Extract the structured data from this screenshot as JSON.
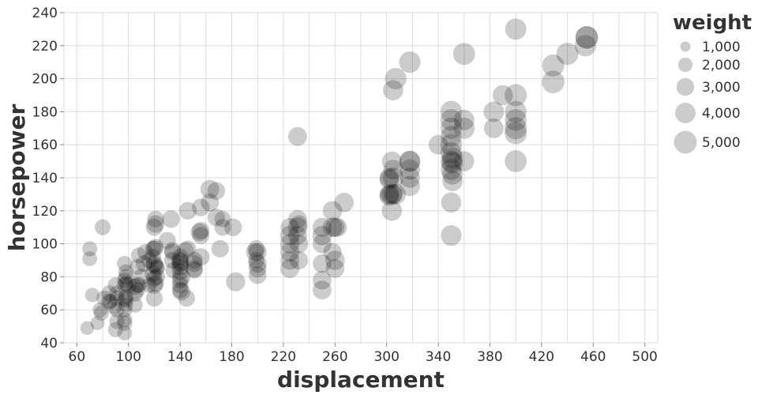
{
  "chart_data": {
    "type": "scatter",
    "title": "",
    "xlabel": "displacement",
    "ylabel": "horsepower",
    "xlim": [
      50,
      510
    ],
    "ylim": [
      40,
      240
    ],
    "x_ticks": [
      60,
      100,
      140,
      180,
      220,
      260,
      300,
      340,
      380,
      420,
      460,
      500
    ],
    "y_ticks": [
      40,
      60,
      80,
      100,
      120,
      140,
      160,
      180,
      200,
      220,
      240
    ],
    "grid": true,
    "size_field": "weight",
    "point_color": "#000000",
    "point_opacity": 0.2,
    "legend": {
      "title": "weight",
      "placement": "right",
      "items": [
        {
          "label": "1,000",
          "value": 1000
        },
        {
          "label": "2,000",
          "value": 2000
        },
        {
          "label": "3,000",
          "value": 3000
        },
        {
          "label": "4,000",
          "value": 4000
        },
        {
          "label": "5,000",
          "value": 5000
        }
      ]
    },
    "points": [
      [
        68,
        49,
        1800
      ],
      [
        70,
        91,
        2100
      ],
      [
        70,
        97,
        2200
      ],
      [
        72,
        69,
        2000
      ],
      [
        76,
        52,
        1900
      ],
      [
        78,
        60,
        2100
      ],
      [
        79,
        58,
        2200
      ],
      [
        80,
        110,
        2400
      ],
      [
        81,
        67,
        2200
      ],
      [
        85,
        65,
        2400
      ],
      [
        85,
        70,
        2400
      ],
      [
        86,
        65,
        2100
      ],
      [
        89,
        62,
        2300
      ],
      [
        90,
        48,
        2200
      ],
      [
        90,
        75,
        2300
      ],
      [
        91,
        53,
        2200
      ],
      [
        91,
        60,
        2200
      ],
      [
        91,
        67,
        2300
      ],
      [
        91,
        70,
        2300
      ],
      [
        97,
        46,
        2100
      ],
      [
        97,
        52,
        2300
      ],
      [
        97,
        54,
        2200
      ],
      [
        97,
        60,
        2200
      ],
      [
        97,
        67,
        2400
      ],
      [
        97,
        75,
        2300
      ],
      [
        97,
        78,
        2200
      ],
      [
        97,
        88,
        2300
      ],
      [
        98,
        63,
        2000
      ],
      [
        98,
        66,
        2300
      ],
      [
        98,
        68,
        2200
      ],
      [
        98,
        76,
        2200
      ],
      [
        98,
        80,
        2300
      ],
      [
        98,
        83,
        2200
      ],
      [
        100,
        75,
        2600
      ],
      [
        105,
        63,
        2300
      ],
      [
        105,
        70,
        2600
      ],
      [
        105,
        74,
        2500
      ],
      [
        107,
        72,
        2300
      ],
      [
        107,
        75,
        2400
      ],
      [
        107,
        86,
        2400
      ],
      [
        108,
        75,
        2300
      ],
      [
        108,
        93,
        2400
      ],
      [
        110,
        80,
        2600
      ],
      [
        112,
        88,
        2600
      ],
      [
        113,
        95,
        2400
      ],
      [
        116,
        75,
        2200
      ],
      [
        116,
        90,
        2400
      ],
      [
        119,
        82,
        2700
      ],
      [
        119,
        92,
        2500
      ],
      [
        119,
        97,
        2400
      ],
      [
        120,
        67,
        2700
      ],
      [
        120,
        75,
        2900
      ],
      [
        120,
        79,
        2600
      ],
      [
        120,
        87,
        2800
      ],
      [
        120,
        88,
        2900
      ],
      [
        120,
        97,
        2700
      ],
      [
        120,
        110,
        2800
      ],
      [
        121,
        76,
        2600
      ],
      [
        121,
        98,
        2600
      ],
      [
        121,
        112,
        2900
      ],
      [
        121,
        115,
        2700
      ],
      [
        122,
        80,
        2600
      ],
      [
        122,
        85,
        2400
      ],
      [
        122,
        86,
        2300
      ],
      [
        130,
        102,
        2800
      ],
      [
        133,
        115,
        3000
      ],
      [
        134,
        90,
        2700
      ],
      [
        134,
        95,
        2600
      ],
      [
        134,
        96,
        2700
      ],
      [
        135,
        84,
        2600
      ],
      [
        140,
        72,
        2600
      ],
      [
        140,
        75,
        2600
      ],
      [
        140,
        78,
        2600
      ],
      [
        140,
        83,
        2600
      ],
      [
        140,
        86,
        2800
      ],
      [
        140,
        88,
        2700
      ],
      [
        140,
        89,
        2900
      ],
      [
        140,
        90,
        2800
      ],
      [
        140,
        92,
        2700
      ],
      [
        141,
        71,
        3000
      ],
      [
        141,
        80,
        3100
      ],
      [
        144,
        96,
        2700
      ],
      [
        145,
        67,
        2700
      ],
      [
        146,
        97,
        2600
      ],
      [
        146,
        120,
        3000
      ],
      [
        151,
        84,
        2700
      ],
      [
        151,
        85,
        2800
      ],
      [
        151,
        88,
        2700
      ],
      [
        151,
        90,
        2700
      ],
      [
        155,
        107,
        3000
      ],
      [
        156,
        92,
        3000
      ],
      [
        156,
        105,
        2800
      ],
      [
        156,
        108,
        2900
      ],
      [
        156,
        122,
        3000
      ],
      [
        163,
        125,
        3100
      ],
      [
        163,
        133,
        3400
      ],
      [
        168,
        116,
        2900
      ],
      [
        168,
        132,
        3000
      ],
      [
        171,
        97,
        2900
      ],
      [
        173,
        110,
        2700
      ],
      [
        173,
        115,
        2600
      ],
      [
        181,
        110,
        3000
      ],
      [
        183,
        77,
        3500
      ],
      [
        198,
        95,
        3100
      ],
      [
        199,
        90,
        2600
      ],
      [
        199,
        97,
        2800
      ],
      [
        200,
        81,
        3000
      ],
      [
        200,
        85,
        3000
      ],
      [
        200,
        88,
        3100
      ],
      [
        200,
        95,
        3100
      ],
      [
        225,
        85,
        3500
      ],
      [
        225,
        90,
        3400
      ],
      [
        225,
        95,
        3500
      ],
      [
        225,
        100,
        3600
      ],
      [
        225,
        105,
        3600
      ],
      [
        225,
        110,
        3300
      ],
      [
        231,
        105,
        3400
      ],
      [
        231,
        110,
        3600
      ],
      [
        231,
        115,
        3200
      ],
      [
        231,
        165,
        3400
      ],
      [
        232,
        90,
        3200
      ],
      [
        232,
        100,
        3300
      ],
      [
        232,
        112,
        2900
      ],
      [
        250,
        72,
        3400
      ],
      [
        250,
        78,
        3400
      ],
      [
        250,
        88,
        3300
      ],
      [
        250,
        100,
        3400
      ],
      [
        250,
        105,
        3600
      ],
      [
        250,
        110,
        3500
      ],
      [
        258,
        95,
        3200
      ],
      [
        258,
        110,
        3700
      ],
      [
        258,
        120,
        3600
      ],
      [
        260,
        85,
        3400
      ],
      [
        260,
        90,
        3600
      ],
      [
        260,
        110,
        3600
      ],
      [
        262,
        110,
        3300
      ],
      [
        267,
        125,
        3600
      ],
      [
        302,
        129,
        3700
      ],
      [
        302,
        130,
        3600
      ],
      [
        302,
        139,
        3600
      ],
      [
        302,
        140,
        3600
      ],
      [
        304,
        120,
        3900
      ],
      [
        304,
        130,
        4200
      ],
      [
        304,
        150,
        3700
      ],
      [
        305,
        130,
        3400
      ],
      [
        305,
        140,
        4000
      ],
      [
        305,
        145,
        3600
      ],
      [
        305,
        193,
        3900
      ],
      [
        307,
        130,
        4000
      ],
      [
        307,
        200,
        4400
      ],
      [
        318,
        135,
        3900
      ],
      [
        318,
        140,
        3900
      ],
      [
        318,
        145,
        4000
      ],
      [
        318,
        150,
        4100
      ],
      [
        318,
        150,
        4200
      ],
      [
        318,
        210,
        4400
      ],
      [
        340,
        160,
        3600
      ],
      [
        350,
        105,
        4100
      ],
      [
        350,
        125,
        3900
      ],
      [
        350,
        145,
        4200
      ],
      [
        350,
        150,
        4300
      ],
      [
        350,
        155,
        4400
      ],
      [
        350,
        160,
        4500
      ],
      [
        350,
        165,
        4200
      ],
      [
        350,
        170,
        4300
      ],
      [
        350,
        175,
        4400
      ],
      [
        350,
        180,
        4500
      ],
      [
        351,
        138,
        3900
      ],
      [
        351,
        142,
        4000
      ],
      [
        351,
        149,
        4300
      ],
      [
        351,
        152,
        4200
      ],
      [
        360,
        150,
        3900
      ],
      [
        360,
        170,
        4300
      ],
      [
        360,
        175,
        4000
      ],
      [
        360,
        215,
        4600
      ],
      [
        383,
        170,
        3700
      ],
      [
        383,
        180,
        4000
      ],
      [
        390,
        190,
        3900
      ],
      [
        400,
        150,
        4600
      ],
      [
        400,
        167,
        4700
      ],
      [
        400,
        170,
        4700
      ],
      [
        400,
        175,
        4500
      ],
      [
        400,
        180,
        4500
      ],
      [
        400,
        190,
        4700
      ],
      [
        400,
        230,
        4300
      ],
      [
        429,
        198,
        4900
      ],
      [
        429,
        208,
        4700
      ],
      [
        440,
        215,
        4700
      ],
      [
        454,
        220,
        4400
      ],
      [
        455,
        225,
        4900
      ],
      [
        455,
        225,
        4800
      ]
    ]
  }
}
